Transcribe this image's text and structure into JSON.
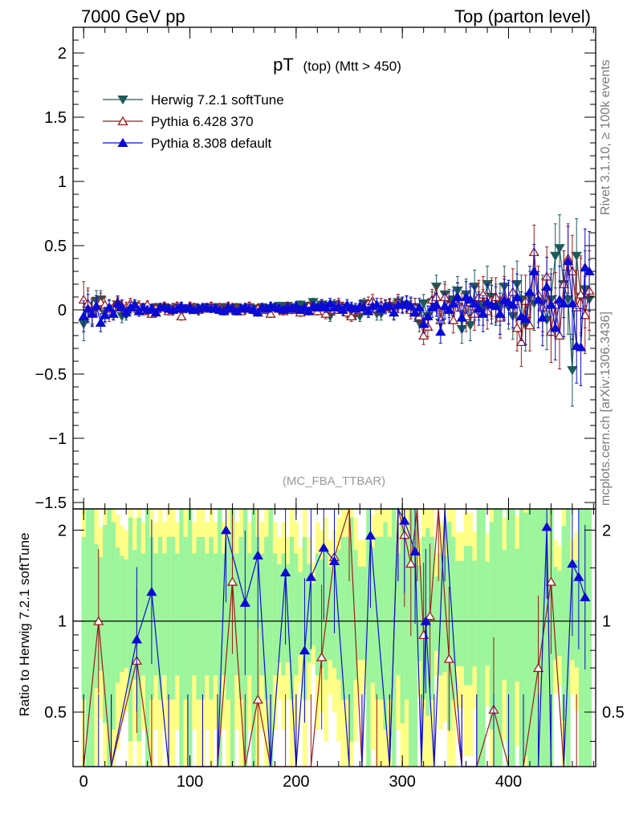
{
  "header": {
    "left": "7000 GeV pp",
    "right": "Top (parton level)"
  },
  "side_labels": {
    "rivet": "Rivet 3.1.10, ≥ 100k events",
    "mcplots": "mcplots.cern.ch [arXiv:1306.3436]"
  },
  "plot": {
    "title_main": "pT",
    "title_sub": "(top) (Mtt > 450)",
    "watermark": "(MC_FBA_TTBAR)",
    "ratio_ylabel": "Ratio to Herwig 7.2.1 softTune"
  },
  "legend": [
    {
      "name": "Herwig 7.2.1 softTune",
      "color": "#1f5a5a",
      "marker": "triangle-down-filled"
    },
    {
      "name": "Pythia 6.428 370",
      "color": "#9b1b1b",
      "marker": "triangle-up-open"
    },
    {
      "name": "Pythia 8.308 default",
      "color": "#0b0bd4",
      "marker": "triangle-up-filled"
    }
  ],
  "colors": {
    "band_green": "#9cf59c",
    "band_yellow": "#ffff88"
  },
  "chart_data": {
    "type": "line",
    "x": [
      0,
      4,
      8,
      12,
      16,
      20,
      24,
      28,
      32,
      36,
      40,
      44,
      48,
      52,
      56,
      60,
      64,
      68,
      72,
      76,
      80,
      84,
      88,
      92,
      96,
      100,
      104,
      108,
      112,
      116,
      120,
      124,
      128,
      132,
      136,
      140,
      144,
      148,
      152,
      156,
      160,
      164,
      168,
      172,
      176,
      180,
      184,
      188,
      192,
      196,
      200,
      204,
      208,
      212,
      216,
      220,
      224,
      228,
      232,
      236,
      240,
      244,
      248,
      252,
      256,
      260,
      264,
      268,
      272,
      276,
      280,
      284,
      288,
      292,
      296,
      300,
      304,
      308,
      312,
      316,
      320,
      324,
      328,
      332,
      336,
      340,
      344,
      348,
      352,
      356,
      360,
      364,
      368,
      372,
      376,
      380,
      384,
      388,
      392,
      396,
      400,
      404,
      408,
      412,
      416,
      420,
      424,
      428,
      432,
      436,
      440,
      444,
      448,
      452,
      456,
      460,
      464,
      468,
      472,
      476
    ],
    "xlim": [
      -10,
      482
    ],
    "xticks": [
      0,
      100,
      200,
      300,
      400
    ],
    "main": {
      "ylim": [
        -1.55,
        2.2
      ],
      "yticks": [
        -1.5,
        -1,
        -0.5,
        0,
        0.5,
        1,
        1.5,
        2
      ],
      "yticklabels": [
        "−1.5",
        "−1",
        "−0.5",
        "0",
        "0.5",
        "1",
        "1.5",
        "2"
      ]
    },
    "ratio": {
      "ylim": [
        0.33,
        2.35
      ],
      "yticks": [
        0.5,
        1,
        2
      ],
      "yticklabels": [
        "0.5",
        "1",
        "2"
      ]
    },
    "series": [
      {
        "name": "Herwig 7.2.1 softTune",
        "values": [
          -0.11,
          0.03,
          -0.02,
          0.07,
          0.08,
          -0.03,
          0.01,
          -0.02,
          0.04,
          -0.05,
          -0.04,
          0.01,
          0.03,
          -0.01,
          0.02,
          0,
          0.01,
          0.02,
          0.01,
          0.02,
          0.01,
          -0.01,
          0.02,
          0,
          0.01,
          0,
          0.02,
          -0.01,
          0.01,
          0.02,
          0.01,
          0.02,
          0,
          0.02,
          0.01,
          0,
          0.02,
          0.01,
          0,
          0.02,
          0,
          0.01,
          0.02,
          0.01,
          0,
          0.02,
          0.03,
          0.02,
          0.03,
          0.01,
          0.02,
          0.04,
          0.01,
          0.03,
          0.06,
          0.02,
          0.04,
          0.03,
          -0.05,
          0.04,
          0.03,
          0.02,
          -0.02,
          0.01,
          -0.03,
          -0.05,
          0.05,
          0,
          0.04,
          -0.03,
          -0.03,
          0.02,
          0.03,
          -0.01,
          0.06,
          0.03,
          0.04,
          0.02,
          0.02,
          -0.1,
          0.05,
          -0.05,
          0.06,
          0.18,
          -0.1,
          0.12,
          0.06,
          0.08,
          0.15,
          -0.15,
          0.12,
          -0.12,
          0.18,
          0.05,
          0.02,
          0.2,
          0.1,
          0.05,
          0.04,
          0.18,
          0.02,
          -0.05,
          0.2,
          0.08,
          -0.12,
          0.1,
          0.05,
          0.08,
          0.05,
          -0.08,
          0.08,
          0.42,
          0.48,
          0.2,
          0.08,
          -0.47,
          0.42,
          0.1,
          0.16,
          0.08
        ],
        "errors": [
          0.13,
          0.12,
          0.1,
          0.08,
          0.07,
          0.06,
          0.06,
          0.05,
          0.05,
          0.05,
          0.04,
          0.04,
          0.04,
          0.04,
          0.03,
          0.03,
          0.03,
          0.03,
          0.03,
          0.03,
          0.03,
          0.03,
          0.03,
          0.03,
          0.03,
          0.03,
          0.03,
          0.03,
          0.03,
          0.03,
          0.03,
          0.03,
          0.03,
          0.03,
          0.03,
          0.03,
          0.03,
          0.03,
          0.03,
          0.03,
          0.03,
          0.03,
          0.03,
          0.03,
          0.03,
          0.03,
          0.03,
          0.03,
          0.03,
          0.03,
          0.03,
          0.03,
          0.03,
          0.03,
          0.03,
          0.03,
          0.04,
          0.04,
          0.04,
          0.04,
          0.04,
          0.04,
          0.04,
          0.04,
          0.04,
          0.04,
          0.04,
          0.05,
          0.05,
          0.05,
          0.05,
          0.05,
          0.05,
          0.06,
          0.06,
          0.06,
          0.06,
          0.07,
          0.07,
          0.07,
          0.07,
          0.08,
          0.08,
          0.09,
          0.09,
          0.1,
          0.1,
          0.1,
          0.11,
          0.11,
          0.12,
          0.12,
          0.13,
          0.13,
          0.14,
          0.14,
          0.15,
          0.15,
          0.16,
          0.16,
          0.17,
          0.18,
          0.18,
          0.19,
          0.2,
          0.2,
          0.21,
          0.22,
          0.22,
          0.23,
          0.24,
          0.25,
          0.26,
          0.26,
          0.27,
          0.28,
          0.29,
          0.3,
          0.3,
          0.31
        ]
      },
      {
        "name": "Pythia 6.428 370",
        "values": [
          0.08,
          0.05,
          -0.01,
          0.03,
          0.06,
          0.04,
          -0.03,
          0.02,
          0.06,
          0.03,
          0.02,
          0.05,
          0.02,
          0.03,
          -0.01,
          0.04,
          -0.03,
          0.01,
          0.02,
          0.03,
          -0.01,
          0.02,
          0.03,
          -0.05,
          0.01,
          0.03,
          0.02,
          0,
          0.01,
          0.02,
          0.03,
          0.01,
          0.02,
          0,
          0.03,
          0.02,
          0.01,
          -0.01,
          0.02,
          0.03,
          0,
          0.01,
          0.02,
          0,
          -0.03,
          0.02,
          0.01,
          -0.01,
          0.03,
          0,
          0.02,
          -0.02,
          0.01,
          0.03,
          0.02,
          -0.01,
          0.03,
          -0.03,
          0.02,
          0,
          0.05,
          0.02,
          -0.02,
          -0.05,
          -0.01,
          0,
          0.03,
          0.05,
          0.07,
          0.01,
          0.04,
          0.02,
          0.04,
          0.01,
          0.06,
          0.04,
          0.05,
          0,
          0.02,
          -0.05,
          -0.2,
          -0.13,
          0.08,
          0.1,
          -0.08,
          0.1,
          0.04,
          -0.08,
          0.1,
          0.02,
          -0.05,
          0.06,
          -0.03,
          0.1,
          0.12,
          -0.01,
          0.08,
          0.1,
          -0.06,
          0.1,
          0.06,
          0.14,
          -0.14,
          -0.25,
          0.07,
          -0.12,
          0.45,
          0.12,
          0.02,
          0.26,
          -0.17,
          0.04,
          -0.2,
          0.2,
          0.4,
          0.3,
          0.02,
          0.12,
          -0.04,
          0.15
        ],
        "errors": [
          0.14,
          0.12,
          0.1,
          0.08,
          0.07,
          0.06,
          0.06,
          0.05,
          0.05,
          0.05,
          0.04,
          0.04,
          0.04,
          0.04,
          0.03,
          0.03,
          0.03,
          0.03,
          0.03,
          0.03,
          0.03,
          0.03,
          0.03,
          0.03,
          0.03,
          0.03,
          0.03,
          0.03,
          0.03,
          0.03,
          0.03,
          0.03,
          0.03,
          0.03,
          0.03,
          0.03,
          0.03,
          0.03,
          0.03,
          0.03,
          0.03,
          0.03,
          0.03,
          0.03,
          0.03,
          0.03,
          0.03,
          0.03,
          0.03,
          0.03,
          0.03,
          0.03,
          0.03,
          0.03,
          0.03,
          0.03,
          0.04,
          0.04,
          0.04,
          0.04,
          0.04,
          0.04,
          0.04,
          0.04,
          0.04,
          0.04,
          0.04,
          0.05,
          0.05,
          0.05,
          0.05,
          0.05,
          0.05,
          0.06,
          0.06,
          0.06,
          0.06,
          0.07,
          0.07,
          0.07,
          0.07,
          0.08,
          0.08,
          0.09,
          0.09,
          0.1,
          0.1,
          0.1,
          0.11,
          0.11,
          0.12,
          0.12,
          0.13,
          0.13,
          0.14,
          0.14,
          0.15,
          0.15,
          0.16,
          0.16,
          0.17,
          0.18,
          0.18,
          0.19,
          0.2,
          0.2,
          0.21,
          0.22,
          0.22,
          0.23,
          0.24,
          0.25,
          0.26,
          0.26,
          0.27,
          0.28,
          0.29,
          0.3,
          0.3,
          0.31
        ]
      },
      {
        "name": "Pythia 8.308 default",
        "values": [
          -0.05,
          0.01,
          -0.03,
          0.03,
          -0.1,
          -0.04,
          0.02,
          -0.03,
          0.05,
          0.02,
          -0.02,
          0.02,
          0.04,
          -0.01,
          0.02,
          0,
          0.01,
          -0.02,
          0.02,
          0.02,
          0.01,
          0,
          0.01,
          0.03,
          0.01,
          0.02,
          0,
          0.01,
          0.02,
          0.02,
          0.01,
          0.01,
          0,
          -0.01,
          0.02,
          0.01,
          -0.01,
          0.01,
          0.02,
          0.01,
          0,
          -0.02,
          0.02,
          0.01,
          0.03,
          0.02,
          0.01,
          0,
          0.02,
          0.01,
          0.03,
          0,
          0.02,
          -0.01,
          0.03,
          0.02,
          0.04,
          0.02,
          0.05,
          0.02,
          0.03,
          0,
          0.04,
          0.02,
          0.01,
          0.03,
          0.02,
          -0.01,
          0.03,
          0.04,
          0.01,
          0.03,
          0.03,
          -0.02,
          0.04,
          0.04,
          0.05,
          0.03,
          -0.02,
          0.02,
          -0.11,
          -0.05,
          0.02,
          0.04,
          -0.17,
          0.03,
          0,
          0.05,
          0.1,
          -0.06,
          0.1,
          0.08,
          0.05,
          0.01,
          -0.03,
          0.06,
          0.04,
          0.03,
          -0.03,
          0.08,
          0.06,
          0.04,
          0.1,
          -0.05,
          -0.07,
          0.14,
          0.3,
          0.08,
          -0.06,
          0.18,
          0.04,
          -0.14,
          0.08,
          0.05,
          0.38,
          0.05,
          -0.28,
          -0.29,
          0.33,
          0.3
        ],
        "errors": [
          0.12,
          0.11,
          0.1,
          0.08,
          0.07,
          0.06,
          0.06,
          0.05,
          0.05,
          0.05,
          0.04,
          0.04,
          0.04,
          0.04,
          0.03,
          0.03,
          0.03,
          0.03,
          0.03,
          0.03,
          0.03,
          0.03,
          0.03,
          0.03,
          0.03,
          0.03,
          0.03,
          0.03,
          0.03,
          0.03,
          0.03,
          0.03,
          0.03,
          0.03,
          0.03,
          0.03,
          0.03,
          0.03,
          0.03,
          0.03,
          0.03,
          0.03,
          0.03,
          0.03,
          0.03,
          0.03,
          0.03,
          0.03,
          0.03,
          0.03,
          0.03,
          0.03,
          0.03,
          0.03,
          0.03,
          0.03,
          0.04,
          0.04,
          0.04,
          0.04,
          0.04,
          0.04,
          0.04,
          0.04,
          0.04,
          0.04,
          0.04,
          0.05,
          0.05,
          0.05,
          0.05,
          0.05,
          0.05,
          0.06,
          0.06,
          0.06,
          0.06,
          0.07,
          0.07,
          0.07,
          0.07,
          0.08,
          0.08,
          0.09,
          0.09,
          0.1,
          0.1,
          0.1,
          0.11,
          0.11,
          0.12,
          0.12,
          0.13,
          0.13,
          0.14,
          0.14,
          0.15,
          0.15,
          0.16,
          0.16,
          0.17,
          0.18,
          0.18,
          0.19,
          0.2,
          0.2,
          0.21,
          0.22,
          0.22,
          0.23,
          0.24,
          0.25,
          0.26,
          0.26,
          0.27,
          0.28,
          0.29,
          0.3,
          0.3,
          0.31
        ]
      }
    ],
    "ratio_series": [
      {
        "name": "Pythia 6.428 370",
        "x": [
          0,
          14,
          26,
          50,
          64,
          80,
          98,
          112,
          126,
          140,
          152,
          164,
          176,
          190,
          200,
          214,
          224,
          236,
          250,
          262,
          276,
          288,
          296,
          302,
          308,
          314,
          320,
          326,
          334,
          344,
          356,
          370,
          386,
          400,
          414,
          428,
          440,
          452,
          464
        ],
        "values": [
          0.3,
          1.0,
          0.3,
          0.74,
          0.3,
          0.3,
          0.3,
          0.3,
          0.3,
          1.35,
          0.3,
          0.55,
          0.3,
          0.3,
          0.3,
          0.3,
          0.76,
          1.63,
          2.4,
          0.3,
          0.3,
          0.3,
          2.4,
          1.93,
          1.55,
          2.4,
          0.9,
          1.04,
          2.4,
          0.75,
          0.3,
          0.3,
          0.51,
          0.3,
          0.3,
          0.7,
          1.35,
          0.3,
          0.3
        ]
      },
      {
        "name": "Pythia 8.308 default",
        "x": [
          0,
          14,
          26,
          50,
          64,
          80,
          98,
          112,
          126,
          134,
          152,
          164,
          176,
          190,
          200,
          208,
          214,
          226,
          236,
          250,
          262,
          270,
          288,
          296,
          302,
          312,
          318,
          322,
          330,
          340,
          356,
          370,
          386,
          400,
          414,
          428,
          436,
          440,
          452,
          460,
          466,
          472
        ],
        "values": [
          0.3,
          0.3,
          0.3,
          0.87,
          1.25,
          0.3,
          0.3,
          0.3,
          0.3,
          2.0,
          1.15,
          1.65,
          0.3,
          1.45,
          0.3,
          0.8,
          1.4,
          1.75,
          1.58,
          0.3,
          0.3,
          1.92,
          0.3,
          2.4,
          2.15,
          1.7,
          0.3,
          1.0,
          0.3,
          2.4,
          0.3,
          0.3,
          0.3,
          0.3,
          0.3,
          0.3,
          2.05,
          0.3,
          0.3,
          1.55,
          1.4,
          1.2
        ]
      }
    ]
  }
}
